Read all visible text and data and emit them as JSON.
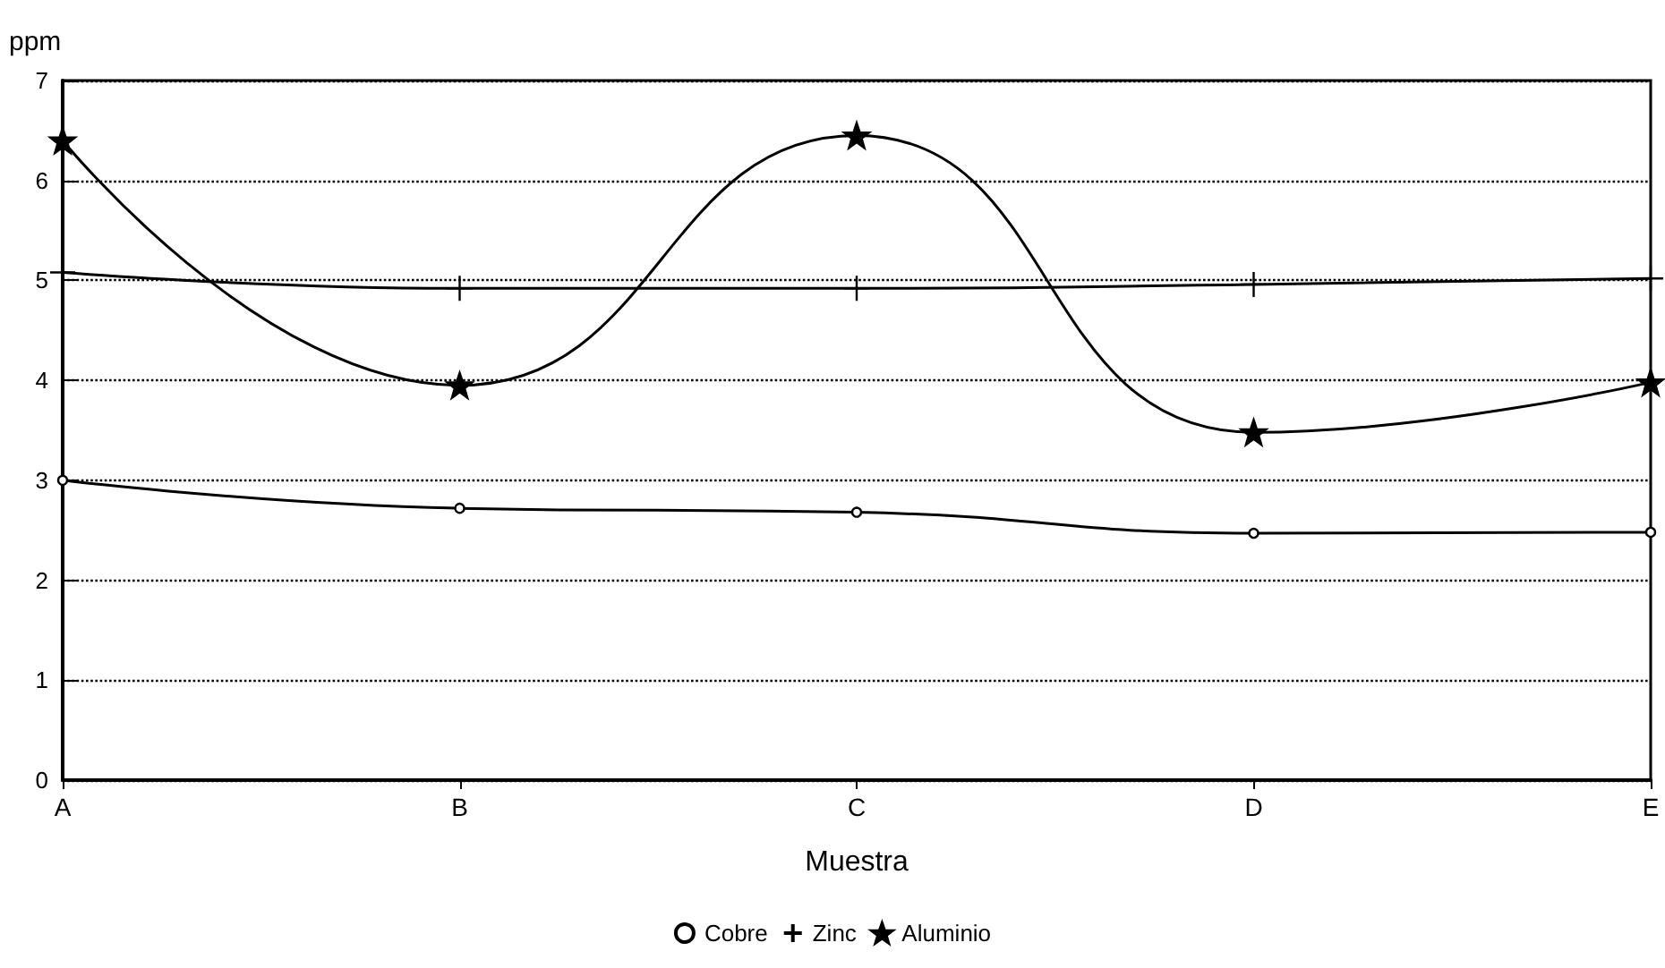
{
  "chart_data": {
    "type": "line",
    "xlabel": "Muestra",
    "ylabel": "ppm",
    "categories": [
      "A",
      "B",
      "C",
      "D",
      "E"
    ],
    "series": [
      {
        "name": "Cobre",
        "color": "#000000",
        "marker": "circle",
        "values": [
          3.0,
          2.72,
          2.68,
          2.47,
          2.48
        ]
      },
      {
        "name": "Zinc",
        "color": "#000000",
        "marker": "cross",
        "values": [
          5.08,
          4.92,
          4.92,
          4.96,
          5.02
        ]
      },
      {
        "name": "Aluminio",
        "color": "#000000",
        "marker": "star",
        "values": [
          6.4,
          3.95,
          6.45,
          3.48,
          3.98
        ]
      }
    ],
    "ylim": [
      0,
      7
    ],
    "yticks": [
      0,
      1,
      2,
      3,
      4,
      5,
      6,
      7
    ],
    "grid": "y",
    "legend": "bottom",
    "line_style": "solid"
  }
}
